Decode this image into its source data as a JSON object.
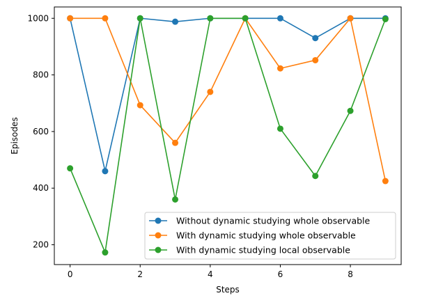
{
  "chart_data": {
    "type": "line",
    "title": "",
    "xlabel": "Steps",
    "ylabel": "Episodes",
    "x": [
      0,
      1,
      2,
      3,
      4,
      5,
      6,
      7,
      8,
      9
    ],
    "xlim": [
      -0.45,
      9.45
    ],
    "ylim": [
      130,
      1040
    ],
    "xticks": [
      0,
      2,
      4,
      6,
      8
    ],
    "yticks": [
      200,
      400,
      600,
      800,
      1000
    ],
    "grid": false,
    "legend_position": "lower-right",
    "series": [
      {
        "name": "Without dynamic studying whole observable",
        "color": "#1f77b4",
        "values": [
          1000,
          460,
          1000,
          988,
          1000,
          1000,
          1000,
          930,
          1000,
          1000
        ]
      },
      {
        "name": "With dynamic studying whole observable",
        "color": "#ff7f0e",
        "values": [
          1000,
          1000,
          693,
          560,
          740,
          1000,
          823,
          852,
          1000,
          425
        ]
      },
      {
        "name": "With dynamic studying local observable",
        "color": "#2ca02c",
        "values": [
          470,
          173,
          1000,
          360,
          1000,
          1000,
          610,
          443,
          673,
          997
        ]
      }
    ]
  }
}
